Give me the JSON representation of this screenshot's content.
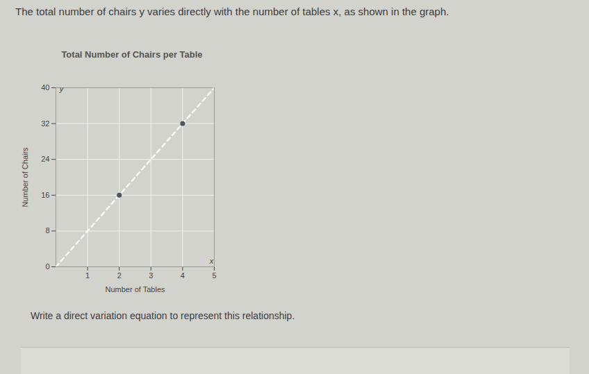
{
  "header": "The total number of chairs y varies directly with the number of tables x, as shown in the graph.",
  "chart_data": {
    "type": "line",
    "title": "Total Number of Chairs per Table",
    "x_label": "Number of Tables",
    "y_label": "Number of Chairs",
    "axis_letters": {
      "x": "x",
      "y": "y"
    },
    "series": [
      {
        "type": "line",
        "line_style": "dashed",
        "color": "#f7f7f3",
        "x": [
          0,
          5
        ],
        "values": [
          0,
          40
        ]
      },
      {
        "type": "scatter",
        "marker": "circle",
        "color": "#4f5560",
        "x": [
          2,
          4
        ],
        "values": [
          16,
          32
        ]
      }
    ],
    "xlim": [
      0,
      5
    ],
    "xticks": [
      1,
      2,
      3,
      4,
      5
    ],
    "ylim": [
      0,
      40
    ],
    "yticks": [
      0,
      8,
      16,
      24,
      32,
      40
    ],
    "grid": true
  },
  "prompt": "Write a direct variation equation to represent this relationship."
}
